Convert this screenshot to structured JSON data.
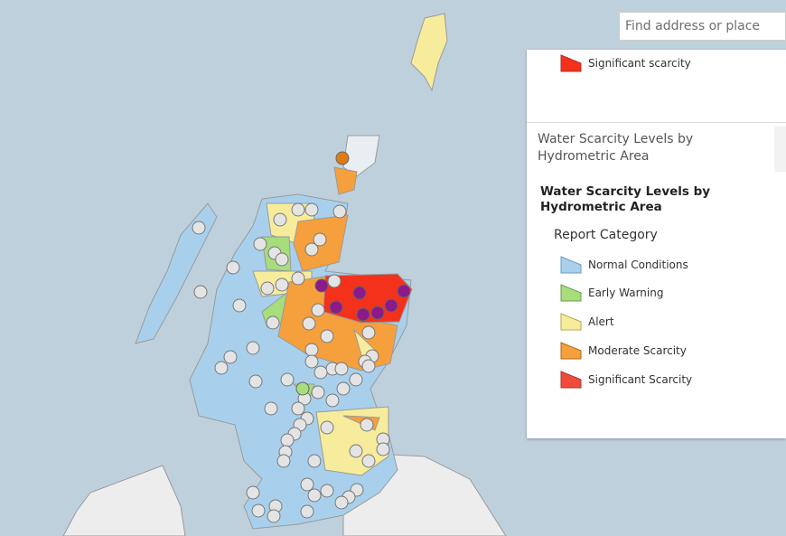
{
  "search": {
    "placeholder": "Find address or place"
  },
  "legend_top": {
    "items": [
      {
        "label": "Significant scarcity"
      }
    ]
  },
  "layer_panel": {
    "header": "Water Scarcity Levels by Hydrometric Area",
    "title": "Water Scarcity Levels by Hydrometric Area",
    "subtitle": "Report Category",
    "items": [
      {
        "label": "Normal Conditions"
      },
      {
        "label": "Early Warning"
      },
      {
        "label": "Alert"
      },
      {
        "label": "Moderate Scarcity"
      },
      {
        "label": "Significant Scarcity"
      }
    ]
  }
}
